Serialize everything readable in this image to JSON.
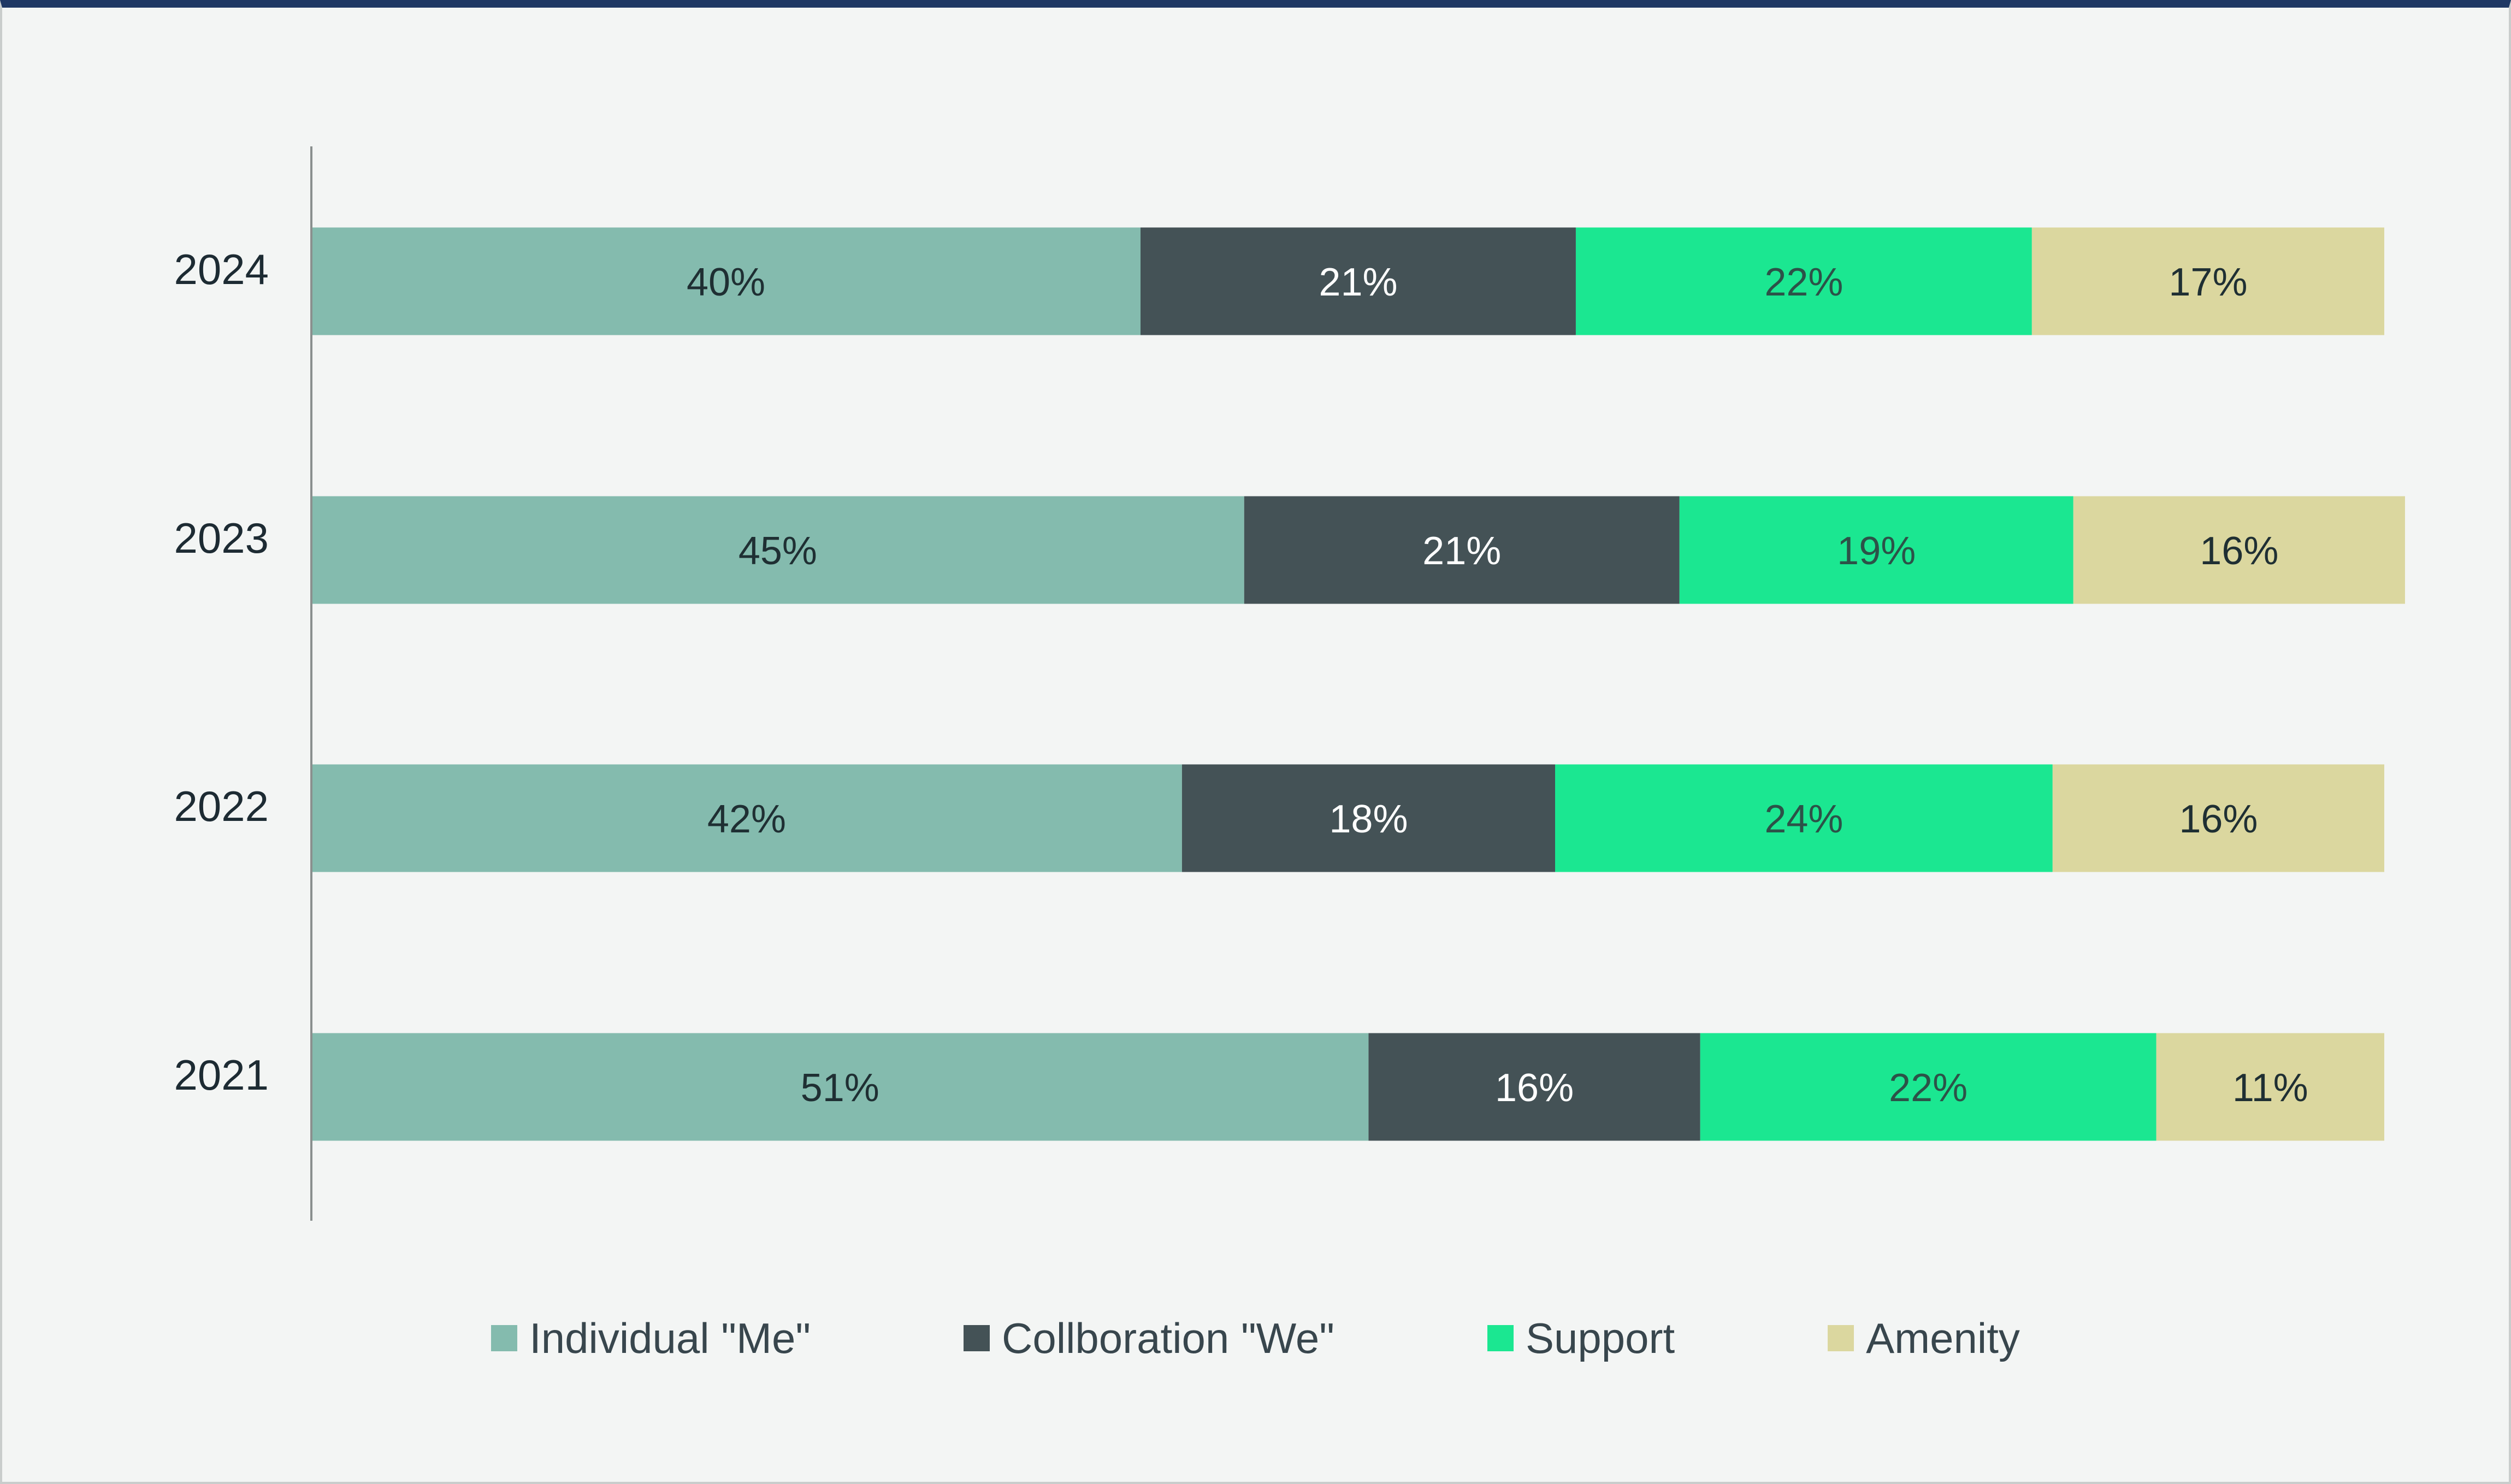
{
  "chart_data": {
    "type": "bar",
    "orientation": "horizontal",
    "stacked": true,
    "categories": [
      "2024",
      "2023",
      "2022",
      "2021"
    ],
    "series": [
      {
        "name": "Individual \"Me\"",
        "values": [
          40,
          45,
          42,
          51
        ],
        "labels": [
          "40%",
          "45%",
          "42%",
          "51%"
        ],
        "color": "#84bbae",
        "label_color": "#1f2f33"
      },
      {
        "name": "Collboration \"We\"",
        "values": [
          21,
          21,
          18,
          16
        ],
        "labels": [
          "21%",
          "21%",
          "18%",
          "16%"
        ],
        "color": "#445256",
        "label_color": "#ffffff"
      },
      {
        "name": "Support",
        "values": [
          22,
          19,
          24,
          22
        ],
        "labels": [
          "22%",
          "19%",
          "24%",
          "22%"
        ],
        "color": "#1be791",
        "label_color": "#2c5248"
      },
      {
        "name": "Amenity",
        "values": [
          17,
          16,
          16,
          11
        ],
        "labels": [
          "17%",
          "16%",
          "16%",
          "11%"
        ],
        "color": "#dbd79f",
        "label_color": "#1f2f33"
      }
    ],
    "xlim": [
      0,
      100
    ],
    "grid": false,
    "legend_position": "bottom",
    "title": "",
    "xlabel": "",
    "ylabel": ""
  },
  "colors": {
    "background": "#f3f5f4",
    "top_rule": "#1f3864",
    "axis": "#8a8f8e"
  }
}
